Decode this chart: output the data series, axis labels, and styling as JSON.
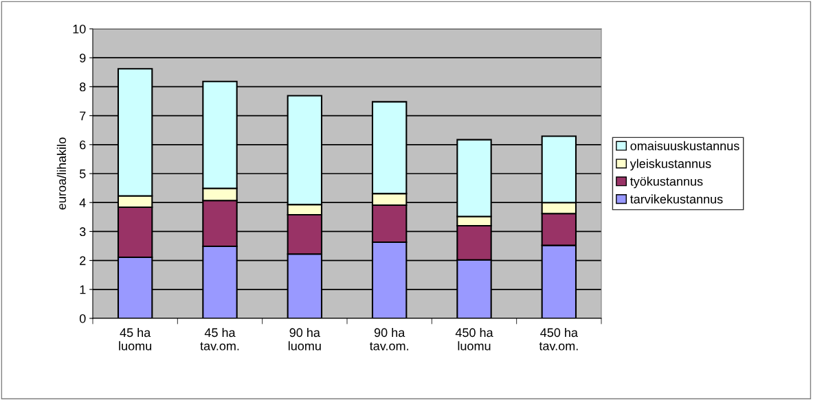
{
  "chart_data": {
    "type": "bar",
    "stacked": true,
    "ylabel": "euroa/lihakilo",
    "categories": [
      "45 ha\nluomu",
      "45 ha\ntav.om.",
      "90 ha\nluomu",
      "90 ha\ntav.om.",
      "450 ha\nluomu",
      "450 ha\ntav.om."
    ],
    "series": [
      {
        "name": "tarvikekustannus",
        "color": "#9999ff",
        "values": [
          2.11,
          2.49,
          2.22,
          2.63,
          2.02,
          2.52
        ]
      },
      {
        "name": "työkustannus",
        "color": "#993366",
        "values": [
          1.73,
          1.58,
          1.36,
          1.28,
          1.18,
          1.1
        ]
      },
      {
        "name": "yleiskustannus",
        "color": "#ffffcc",
        "values": [
          0.39,
          0.42,
          0.35,
          0.4,
          0.32,
          0.38
        ]
      },
      {
        "name": "omaisuuskustannus",
        "color": "#ccffff",
        "values": [
          4.39,
          3.69,
          3.76,
          3.17,
          2.65,
          2.29
        ]
      }
    ],
    "ylim": [
      0,
      10
    ],
    "yticks": [
      0,
      1,
      2,
      3,
      4,
      5,
      6,
      7,
      8,
      9,
      10
    ],
    "grid": "y",
    "legend": "right"
  }
}
